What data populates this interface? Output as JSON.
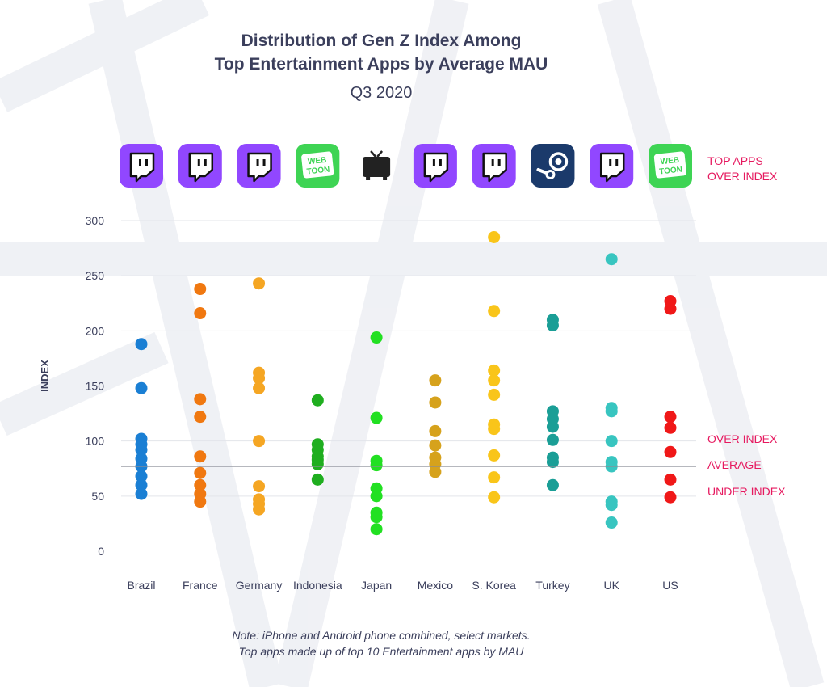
{
  "title_line1": "Distribution of Gen Z Index Among",
  "title_line2": "Top Entertainment Apps by Average MAU",
  "subtitle": "Q3 2020",
  "legend": {
    "top_apps_line1": "TOP APPS",
    "top_apps_line2": "OVER INDEX",
    "over_index": "OVER INDEX",
    "average": "AVERAGE",
    "under_index": "UNDER  INDEX"
  },
  "note_line1": "Note: iPhone and Android phone combined, select markets.",
  "note_line2": "Top apps made up of top 10 Entertainment apps by MAU",
  "top_app_icons": [
    {
      "icon": "twitch-icon",
      "label": ""
    },
    {
      "icon": "twitch-icon",
      "label": ""
    },
    {
      "icon": "twitch-icon",
      "label": ""
    },
    {
      "icon": "webtoon-icon",
      "label": "WEB TOON"
    },
    {
      "icon": "tv-icon",
      "label": ""
    },
    {
      "icon": "twitch-icon",
      "label": ""
    },
    {
      "icon": "twitch-icon",
      "label": ""
    },
    {
      "icon": "steam-icon",
      "label": ""
    },
    {
      "icon": "twitch-icon",
      "label": ""
    },
    {
      "icon": "webtoon-icon",
      "label": "WEB TOON"
    }
  ],
  "colors": {
    "Brazil": "#1a7fd4",
    "France": "#f07810",
    "Germany": "#f5a623",
    "Indonesia": "#1fae1f",
    "Japan": "#22e022",
    "Mexico": "#d6a21c",
    "S. Korea": "#f9c51a",
    "Turkey": "#1a9e96",
    "UK": "#38c5c0",
    "US": "#f01818",
    "accent": "#e6195f",
    "twitch": "#9147ff",
    "webtoon": "#3ed454",
    "steam": "#1b3a6b"
  },
  "chart_data": {
    "type": "scatter",
    "ylabel": "INDEX",
    "ylim": [
      0,
      300
    ],
    "yticks": [
      0,
      50,
      100,
      150,
      200,
      250,
      300
    ],
    "average": 77,
    "categories": [
      "Brazil",
      "France",
      "Germany",
      "Indonesia",
      "Japan",
      "Mexico",
      "S. Korea",
      "Turkey",
      "UK",
      "US"
    ],
    "series": [
      {
        "name": "Brazil",
        "values": [
          188,
          148,
          102,
          97,
          92,
          84,
          77,
          68,
          60,
          52
        ]
      },
      {
        "name": "France",
        "values": [
          238,
          216,
          138,
          122,
          86,
          71,
          60,
          52,
          45
        ]
      },
      {
        "name": "Germany",
        "values": [
          243,
          162,
          157,
          148,
          100,
          59,
          47,
          43,
          38
        ]
      },
      {
        "name": "Indonesia",
        "values": [
          137,
          97,
          92,
          86,
          83,
          79,
          65
        ]
      },
      {
        "name": "Japan",
        "values": [
          194,
          121,
          82,
          78,
          57,
          50,
          35,
          31,
          20
        ]
      },
      {
        "name": "Mexico",
        "values": [
          155,
          135,
          109,
          96,
          85,
          79,
          72
        ]
      },
      {
        "name": "S. Korea",
        "values": [
          285,
          218,
          164,
          155,
          142,
          115,
          111,
          87,
          67,
          49
        ]
      },
      {
        "name": "Turkey",
        "values": [
          210,
          205,
          127,
          120,
          113,
          101,
          85,
          81,
          60
        ]
      },
      {
        "name": "UK",
        "values": [
          265,
          130,
          127,
          100,
          81,
          77,
          45,
          42,
          26
        ]
      },
      {
        "name": "US",
        "values": [
          227,
          220,
          122,
          112,
          90,
          65,
          49
        ]
      }
    ]
  }
}
